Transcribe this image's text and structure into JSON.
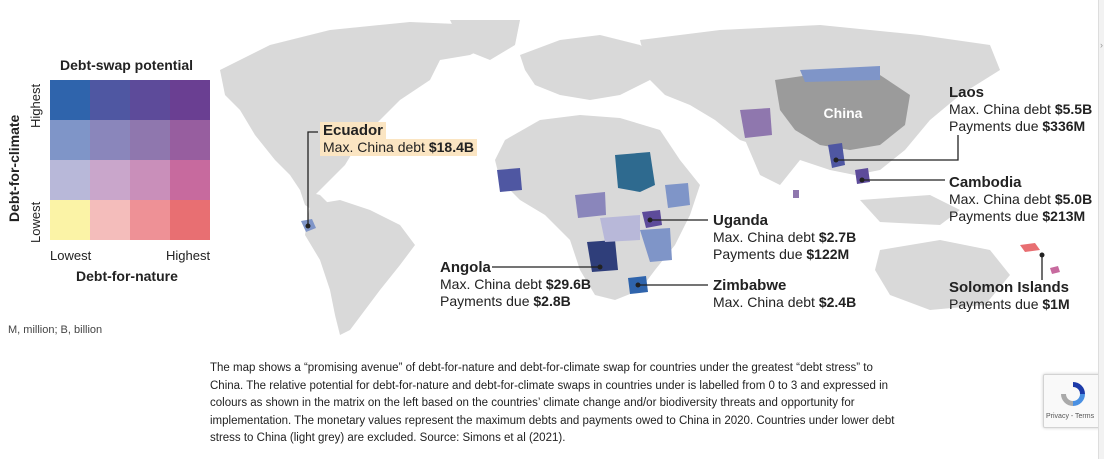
{
  "legend": {
    "title": "Debt-swap potential",
    "y_axis_title": "Debt-for-climate",
    "y_high": "Highest",
    "y_low": "Lowest",
    "x_axis_title": "Debt-for-nature",
    "x_low": "Lowest",
    "x_high": "Highest",
    "matrix_colors": [
      [
        "#2f64ac",
        "#4f57a2",
        "#5d4b9a",
        "#6a3f92"
      ],
      [
        "#7f95c8",
        "#8a86bb",
        "#8f77ae",
        "#975e9f"
      ],
      [
        "#b8b8d9",
        "#c9a6cb",
        "#c98fba",
        "#c76a9e"
      ],
      [
        "#fbf3a6",
        "#f4bdbb",
        "#ee9196",
        "#e86f72"
      ]
    ]
  },
  "map_label": "China",
  "callouts": {
    "ecuador": {
      "name": "Ecuador",
      "debt_label": "Max. China debt",
      "debt": "$18.4B"
    },
    "angola": {
      "name": "Angola",
      "debt_label": "Max. China debt",
      "debt": "$29.6B",
      "pay_label": "Payments due",
      "pay": "$2.8B"
    },
    "uganda": {
      "name": "Uganda",
      "debt_label": "Max. China debt",
      "debt": "$2.7B",
      "pay_label": "Payments due",
      "pay": "$122M"
    },
    "zimbabwe": {
      "name": "Zimbabwe",
      "debt_label": "Max. China debt",
      "debt": "$2.4B"
    },
    "laos": {
      "name": "Laos",
      "debt_label": "Max. China debt",
      "debt": "$5.5B",
      "pay_label": "Payments due",
      "pay": "$336M"
    },
    "cambodia": {
      "name": "Cambodia",
      "debt_label": "Max. China debt",
      "debt": "$5.0B",
      "pay_label": "Payments due",
      "pay": "$213M"
    },
    "solomon": {
      "name": "Solomon Islands",
      "pay_label": "Payments due",
      "pay": "$1M"
    }
  },
  "units_note": "M, million; B, billion",
  "caption": "The map shows a “promising avenue” of debt-for-nature and debt-for-climate swap for countries under the greatest “debt stress” to China. The relative potential for debt-for-nature and debt-for-climate swaps in countries under is labelled from 0 to 3 and expressed in colours as shown in the matrix on the left based on the countries’ climate change and/or biodiversity threats and opportunity for implementation. The monetary values represent the maximum debts and payments owed to China in 2020. Countries under lower debt stress to China (light grey) are excluded. Source: Simons et al (2021).",
  "recaptcha": {
    "links": "Privacy - Terms"
  },
  "colors": {
    "land": "#d9d9d9",
    "china": "#9b9b9b",
    "ocean": "#ffffff",
    "highlight": "#fbe5c2"
  }
}
